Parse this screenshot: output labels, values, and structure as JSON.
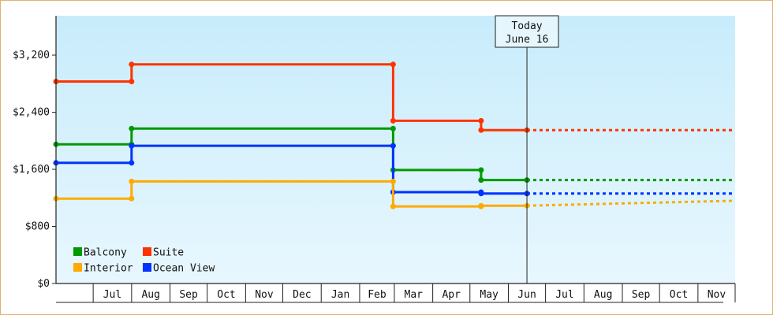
{
  "chart_data": {
    "type": "line",
    "step": true,
    "x_axis": {
      "tick_labels": [
        "Jul",
        "Aug",
        "Sep",
        "Oct",
        "Nov",
        "Dec",
        "Jan",
        "Feb",
        "Mar",
        "Apr",
        "May",
        "Jun",
        "Jul",
        "Aug",
        "Sep",
        "Oct",
        "Nov"
      ],
      "start": "2022-06-01",
      "end": "2023-12-01"
    },
    "y_axis": {
      "ylim": [
        0,
        3200
      ],
      "ticks": [
        0,
        800,
        1600,
        2400,
        3200
      ],
      "tick_labels": [
        "$0",
        "$800",
        "$1,600",
        "$2,400",
        "$3,200"
      ]
    },
    "today": {
      "line1": "Today",
      "line2": "June 16",
      "date": "2023-06-16"
    },
    "legend": {
      "placement": "bottom-left"
    },
    "series": [
      {
        "name": "Suite",
        "color": "#ff3300",
        "points": [
          [
            "2022-06-01",
            2830
          ],
          [
            "2022-08-01",
            2830
          ],
          [
            "2022-08-01",
            3070
          ],
          [
            "2023-02-28",
            3070
          ],
          [
            "2023-02-28",
            2280
          ],
          [
            "2023-05-10",
            2280
          ],
          [
            "2023-05-10",
            2150
          ],
          [
            "2023-06-16",
            2150
          ]
        ],
        "forecast": [
          [
            "2023-06-16",
            2150
          ],
          [
            "2023-12-01",
            2150
          ]
        ]
      },
      {
        "name": "Balcony",
        "color": "#009900",
        "points": [
          [
            "2022-06-01",
            1950
          ],
          [
            "2022-08-01",
            1950
          ],
          [
            "2022-08-01",
            2170
          ],
          [
            "2023-02-28",
            2170
          ],
          [
            "2023-02-28",
            1590
          ],
          [
            "2023-05-10",
            1590
          ],
          [
            "2023-05-10",
            1450
          ],
          [
            "2023-06-16",
            1450
          ]
        ],
        "forecast": [
          [
            "2023-06-16",
            1450
          ],
          [
            "2023-12-01",
            1450
          ]
        ]
      },
      {
        "name": "Ocean View",
        "color": "#0033ff",
        "points": [
          [
            "2022-06-01",
            1690
          ],
          [
            "2022-08-01",
            1690
          ],
          [
            "2022-08-01",
            1930
          ],
          [
            "2023-02-28",
            1930
          ],
          [
            "2023-02-28",
            1280
          ],
          [
            "2023-05-10",
            1280
          ],
          [
            "2023-05-10",
            1260
          ],
          [
            "2023-06-16",
            1260
          ]
        ],
        "forecast": [
          [
            "2023-06-16",
            1260
          ],
          [
            "2023-12-01",
            1260
          ]
        ]
      },
      {
        "name": "Interior",
        "color": "#ffaa00",
        "points": [
          [
            "2022-06-01",
            1190
          ],
          [
            "2022-08-01",
            1190
          ],
          [
            "2022-08-01",
            1430
          ],
          [
            "2023-02-28",
            1430
          ],
          [
            "2023-02-28",
            1080
          ],
          [
            "2023-05-10",
            1080
          ],
          [
            "2023-05-10",
            1090
          ],
          [
            "2023-06-16",
            1090
          ]
        ],
        "forecast": [
          [
            "2023-06-16",
            1090
          ],
          [
            "2023-12-01",
            1160
          ]
        ]
      }
    ],
    "legend_order": [
      "Balcony",
      "Suite",
      "Interior",
      "Ocean View"
    ],
    "grid": false
  }
}
